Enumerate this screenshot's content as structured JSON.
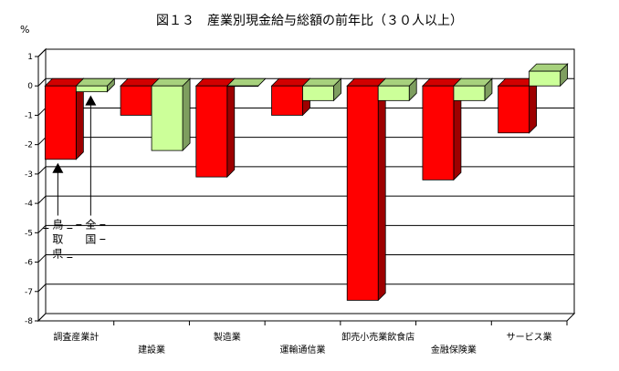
{
  "chart_data": {
    "type": "bar",
    "title": "図１３　産業別現金給与総額の前年比（３０人以上）",
    "ylabel": "%",
    "ylim": [
      -8,
      1
    ],
    "yticks": [
      1,
      0,
      -1,
      -2,
      -3,
      -4,
      -5,
      -6,
      -7,
      -8
    ],
    "grid": true,
    "categories": [
      "調査産業計",
      "建設業",
      "製造業",
      "運輸通信業",
      "卸売小売業飲食店",
      "金融保険業",
      "サービス業"
    ],
    "series": [
      {
        "name": "鳥取県",
        "color": "#ff0000",
        "values": [
          -2.5,
          -1.0,
          -3.1,
          -1.0,
          -7.3,
          -3.2,
          -1.6
        ]
      },
      {
        "name": "全国",
        "color": "#ccff99",
        "values": [
          -0.2,
          -2.2,
          0.0,
          -0.5,
          -0.5,
          -0.5,
          0.5
        ]
      }
    ],
    "annotations": [
      {
        "text": "鳥取県",
        "target_series": "鳥取県",
        "target_category": "調査産業計",
        "label_chars": [
          "鳥",
          "取",
          "県"
        ]
      },
      {
        "text": "全国",
        "target_series": "全国",
        "target_category": "調査産業計",
        "label_chars": [
          "全",
          "国"
        ]
      }
    ]
  }
}
